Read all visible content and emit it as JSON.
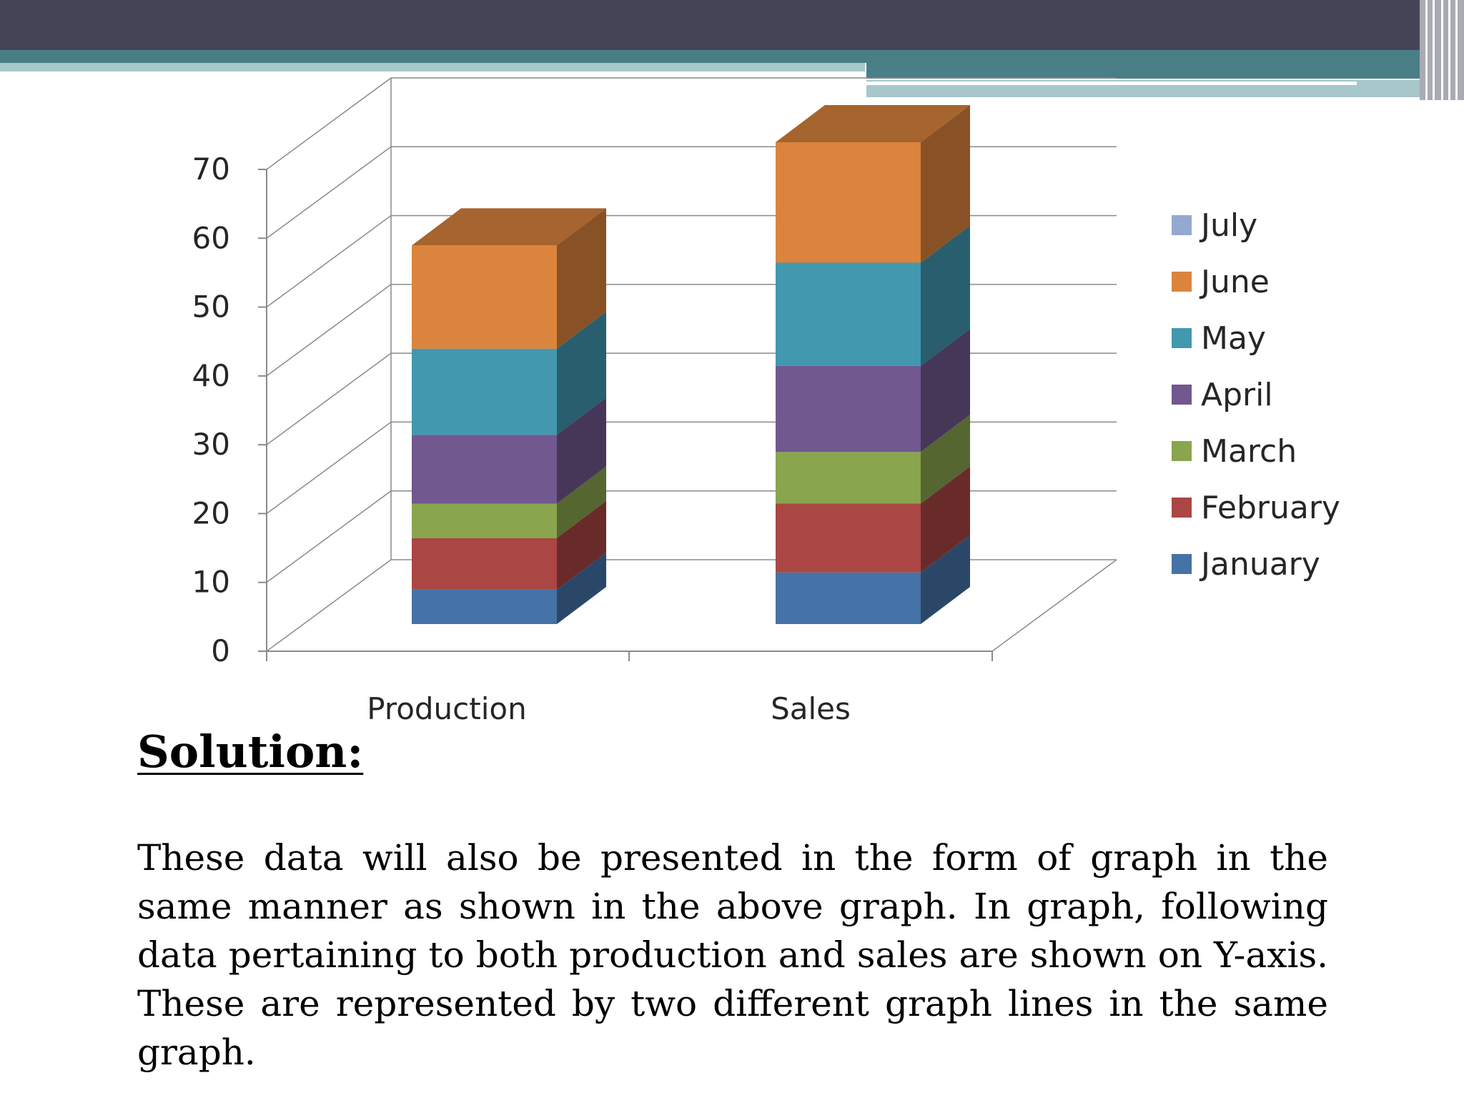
{
  "chart_data": {
    "type": "bar",
    "stacked": true,
    "three_d": true,
    "categories": [
      "Production",
      "Sales"
    ],
    "series": [
      {
        "name": "January",
        "color": "#4572a7",
        "values": [
          5,
          7.5
        ]
      },
      {
        "name": "February",
        "color": "#aa4643",
        "values": [
          7.5,
          10
        ]
      },
      {
        "name": "March",
        "color": "#89a54e",
        "values": [
          5,
          7.5
        ]
      },
      {
        "name": "April",
        "color": "#71588f",
        "values": [
          10,
          12.5
        ]
      },
      {
        "name": "May",
        "color": "#4198af",
        "values": [
          12.5,
          15
        ]
      },
      {
        "name": "June",
        "color": "#db843d",
        "values": [
          15,
          17.5
        ]
      },
      {
        "name": "July",
        "color": "#93a9cf",
        "values": [
          0,
          0
        ]
      }
    ],
    "yticks": [
      "0",
      "10",
      "20",
      "30",
      "40",
      "50",
      "60",
      "70"
    ],
    "ylim": [
      0,
      70
    ],
    "grid": true,
    "legend_position": "right"
  },
  "solution": {
    "heading": "Solution:",
    "body": "These data will also be presented in the form of graph in the same manner as shown in the above graph. In graph, following data pertaining to both production and sales are shown on Y-axis. These are represented by two different graph lines in the same graph."
  }
}
